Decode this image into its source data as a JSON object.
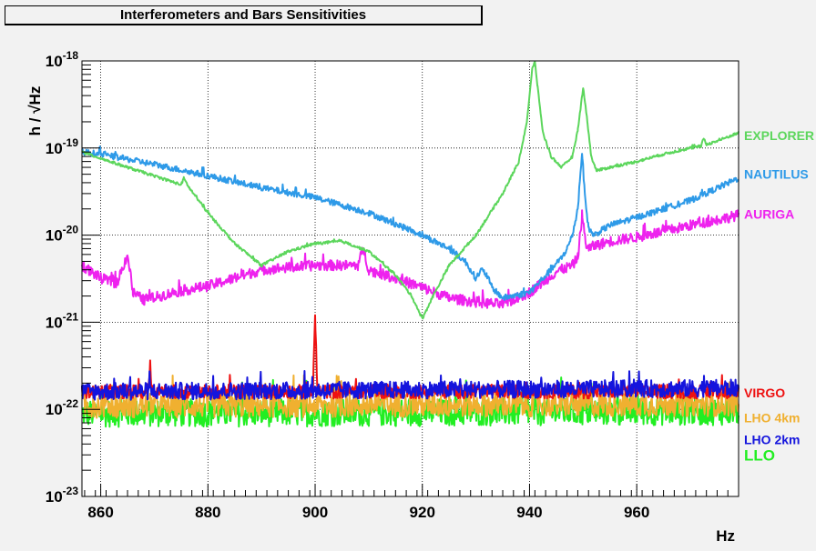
{
  "chart_data": {
    "type": "line",
    "title": "Interferometers and Bars Sensitivities",
    "xlabel": "Hz",
    "ylabel": "h / √Hz",
    "xlim": [
      856.5,
      979
    ],
    "ylim": [
      1e-23,
      1e-18
    ],
    "yscale": "log",
    "grid": true,
    "legend": "right edge labels",
    "x_ticks": [
      860,
      880,
      900,
      920,
      940,
      960
    ],
    "y_ticks": [
      {
        "value": 1e-23,
        "mantissa": "10",
        "exp": "-23"
      },
      {
        "value": 1e-22,
        "mantissa": "10",
        "exp": "-22"
      },
      {
        "value": 1e-21,
        "mantissa": "10",
        "exp": "-21"
      },
      {
        "value": 1e-20,
        "mantissa": "10",
        "exp": "-20"
      },
      {
        "value": 1e-19,
        "mantissa": "10",
        "exp": "-19"
      },
      {
        "value": 1e-18,
        "mantissa": "10",
        "exp": "-18"
      }
    ],
    "series": [
      {
        "name": "EXPLORER",
        "color": "#5cd65c",
        "noise": 0.015,
        "x": [
          856.5,
          865,
          875,
          875.5,
          876.5,
          880,
          885,
          890,
          895,
          900,
          905,
          910,
          915,
          918,
          920,
          922,
          925,
          930,
          935,
          938,
          939.5,
          940.5,
          941,
          941.5,
          942.5,
          944,
          946,
          948,
          949,
          950,
          950.8,
          951.5,
          952.5,
          955,
          960,
          965,
          970,
          972,
          972.5,
          973,
          975,
          979
        ],
        "y": [
          9e-20,
          6e-20,
          3.8e-20,
          4.5e-20,
          3.5e-20,
          1.8e-20,
          8e-21,
          4.5e-21,
          6.5e-21,
          8e-21,
          8.5e-21,
          6.5e-21,
          3.5e-21,
          2e-21,
          1.1e-21,
          2e-21,
          4.5e-21,
          1e-20,
          3e-20,
          7e-20,
          2e-19,
          8e-19,
          1e-18,
          5e-19,
          1.5e-19,
          8e-20,
          6e-20,
          8e-20,
          1.6e-19,
          5e-19,
          2e-19,
          8e-20,
          5.5e-20,
          6e-20,
          7e-20,
          8.5e-20,
          1e-19,
          1.05e-19,
          1.3e-19,
          1.1e-19,
          1.2e-19,
          1.5e-19
        ]
      },
      {
        "name": "NAUTILUS",
        "color": "#2e9ae8",
        "noise": 0.035,
        "x": [
          856.5,
          860,
          870,
          880,
          890,
          900,
          910,
          920,
          925,
          928,
          930,
          931,
          932,
          933,
          935,
          940,
          944,
          946,
          947,
          948,
          949,
          949.8,
          950.3,
          951,
          952,
          955,
          960,
          970,
          979
        ],
        "y": [
          9e-20,
          8.5e-20,
          6.5e-20,
          4.8e-20,
          3.5e-20,
          2.7e-20,
          1.8e-20,
          1e-20,
          7e-21,
          5e-21,
          3.2e-21,
          4e-21,
          3.5e-21,
          2.5e-21,
          1.9e-21,
          2.2e-21,
          4e-21,
          5.5e-21,
          7e-21,
          1e-20,
          2e-20,
          9e-20,
          3e-20,
          1.2e-20,
          1e-20,
          1.3e-20,
          1.6e-20,
          2.5e-20,
          4.5e-20
        ]
      },
      {
        "name": "AURIGA",
        "color": "#ee22ee",
        "noise": 0.06,
        "x": [
          856.5,
          860,
          863,
          865,
          866,
          868,
          875,
          880,
          885,
          890,
          900,
          905,
          908,
          909,
          910,
          915,
          920,
          925,
          930,
          935,
          940,
          945,
          948,
          949,
          949.8,
          950.5,
          951,
          952,
          955,
          960,
          965,
          970,
          975,
          979
        ],
        "y": [
          4.5e-21,
          3.2e-21,
          2.8e-21,
          6e-21,
          2.2e-21,
          1.8e-21,
          2.3e-21,
          2.6e-21,
          3.2e-21,
          4e-21,
          4.5e-21,
          4.5e-21,
          4.5e-21,
          7e-21,
          4e-21,
          3.2e-21,
          2.5e-21,
          1.9e-21,
          1.7e-21,
          1.6e-21,
          2.2e-21,
          3.8e-21,
          4.5e-21,
          5.5e-21,
          1.7e-20,
          8e-21,
          7e-21,
          7.5e-21,
          8.5e-21,
          9.5e-21,
          1.1e-20,
          1.3e-20,
          1.5e-20,
          1.7e-20
        ]
      },
      {
        "name": "VIRGO",
        "color": "#ee1111",
        "noise": 0.08,
        "x": [
          856.5,
          868.8,
          869.2,
          869.6,
          899.6,
          900,
          900.4,
          979
        ],
        "y": [
          1.6e-22,
          1.6e-22,
          3.2e-22,
          1.6e-22,
          1.6e-22,
          1.3e-21,
          1.6e-22,
          1.6e-22
        ]
      },
      {
        "name": "LHO 4km",
        "color": "#f0b030",
        "noise": 0.14,
        "x": [
          856.5,
          979
        ],
        "y": [
          1.1e-22,
          1.15e-22
        ]
      },
      {
        "name": "LHO 2km",
        "color": "#1414dd",
        "noise": 0.1,
        "x": [
          856.5,
          979
        ],
        "y": [
          1.6e-22,
          1.75e-22
        ]
      },
      {
        "name": "LLO",
        "color": "#22ee22",
        "noise": 0.16,
        "x": [
          856.5,
          979
        ],
        "y": [
          9e-23,
          9.5e-23
        ]
      }
    ],
    "legend_entries": [
      {
        "name": "EXPLORER",
        "color": "#5cd65c",
        "y": 1.4e-19
      },
      {
        "name": "NAUTILUS",
        "color": "#2e9ae8",
        "y": 5e-20
      },
      {
        "name": "AURIGA",
        "color": "#ee22ee",
        "y": 1.75e-20
      },
      {
        "name": "VIRGO",
        "color": "#ee1111",
        "y": 1.55e-22
      },
      {
        "name": "LHO 4km",
        "color": "#f0b030",
        "y": 8e-23
      },
      {
        "name": "LHO 2km",
        "color": "#1414dd",
        "y": 4.5e-23
      },
      {
        "name": "LLO",
        "color": "#22ee22",
        "y": 2.9e-23
      }
    ]
  }
}
